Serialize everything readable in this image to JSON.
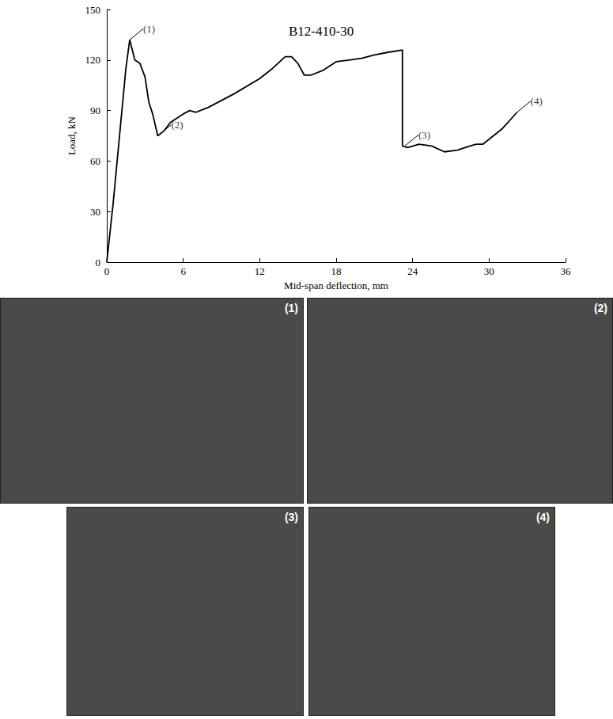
{
  "chart_data": {
    "type": "line",
    "title": "B12-410-30",
    "x_label": "Mid-span deflection, mm",
    "y_label": "Load, kN",
    "x": [
      0,
      0.5,
      1,
      1.5,
      1.8,
      2.2,
      2.6,
      3,
      3.3,
      3.6,
      4,
      4.5,
      5,
      6,
      6.5,
      7,
      8,
      10,
      12,
      13,
      14,
      14.5,
      15,
      15.5,
      16,
      17,
      18,
      19,
      20,
      21,
      22,
      23.2,
      23.2,
      23.6,
      24.5,
      25.5,
      26.5,
      27.5,
      28.5,
      29,
      29.5,
      31,
      32.2
    ],
    "values": [
      0,
      35,
      75,
      115,
      132,
      120,
      118,
      110,
      95,
      88,
      75,
      78,
      83,
      88,
      90,
      89,
      92,
      100,
      109,
      115,
      122,
      122,
      118,
      111,
      111,
      114,
      119,
      120,
      121,
      123,
      124.5,
      126,
      69,
      68,
      70,
      69,
      65.5,
      66.5,
      69,
      70,
      70,
      79,
      89
    ],
    "color": "#000000",
    "xlim": [
      0,
      36
    ],
    "xticks": [
      0,
      6,
      12,
      18,
      24,
      30,
      36
    ],
    "ylim": [
      0,
      150
    ],
    "yticks": [
      0,
      30,
      60,
      90,
      120,
      150
    ],
    "grid": false,
    "annotations": [
      {
        "text": "(1)",
        "x": 1.8,
        "y": 132
      },
      {
        "text": "(2)",
        "x": 4,
        "y": 75
      },
      {
        "text": "(3)",
        "x": 23.4,
        "y": 69
      },
      {
        "text": "(4)",
        "x": 32.2,
        "y": 89
      }
    ]
  },
  "photos": [
    {
      "label": "(1)"
    },
    {
      "label": "(2)"
    },
    {
      "label": "(3)"
    },
    {
      "label": "(4)"
    }
  ]
}
